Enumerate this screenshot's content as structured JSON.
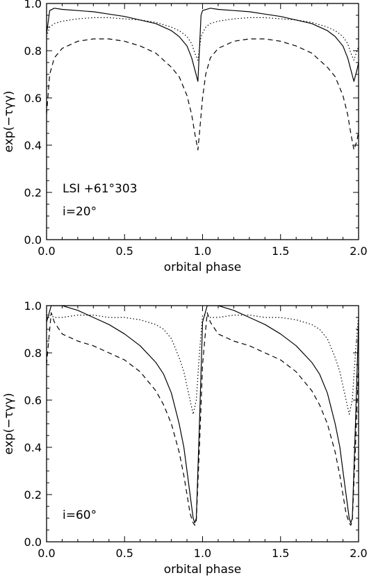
{
  "chart_data": [
    {
      "type": "line",
      "xlabel": "orbital phase",
      "ylabel": "exp(−τγγ)",
      "xlim": [
        0.0,
        2.0
      ],
      "ylim": [
        0.0,
        1.0
      ],
      "xticks": [
        "0.0",
        "0.5",
        "1.0",
        "1.5",
        "2.0"
      ],
      "yticks": [
        "0.0",
        "0.2",
        "0.4",
        "0.6",
        "0.8",
        "1.0"
      ],
      "annotations": [
        "LSI +61°303",
        "i=20°"
      ],
      "grid": false,
      "series": [
        {
          "style": "solid",
          "points": [
            [
              0.0,
              0.87
            ],
            [
              0.02,
              0.97
            ],
            [
              0.05,
              0.98
            ],
            [
              0.1,
              0.975
            ],
            [
              0.2,
              0.97
            ],
            [
              0.3,
              0.965
            ],
            [
              0.4,
              0.955
            ],
            [
              0.5,
              0.945
            ],
            [
              0.6,
              0.93
            ],
            [
              0.7,
              0.915
            ],
            [
              0.8,
              0.885
            ],
            [
              0.85,
              0.86
            ],
            [
              0.9,
              0.82
            ],
            [
              0.93,
              0.77
            ],
            [
              0.95,
              0.72
            ],
            [
              0.97,
              0.67
            ],
            [
              0.99,
              0.95
            ],
            [
              1.0,
              0.97
            ],
            [
              1.05,
              0.98
            ],
            [
              1.1,
              0.975
            ],
            [
              1.2,
              0.97
            ],
            [
              1.3,
              0.965
            ],
            [
              1.4,
              0.955
            ],
            [
              1.5,
              0.945
            ],
            [
              1.6,
              0.93
            ],
            [
              1.7,
              0.915
            ],
            [
              1.8,
              0.885
            ],
            [
              1.85,
              0.86
            ],
            [
              1.9,
              0.82
            ],
            [
              1.93,
              0.77
            ],
            [
              1.95,
              0.72
            ],
            [
              1.97,
              0.67
            ],
            [
              1.99,
              0.72
            ],
            [
              2.0,
              0.75
            ]
          ]
        },
        {
          "style": "dotted",
          "points": [
            [
              0.0,
              0.86
            ],
            [
              0.02,
              0.9
            ],
            [
              0.05,
              0.915
            ],
            [
              0.1,
              0.925
            ],
            [
              0.2,
              0.935
            ],
            [
              0.3,
              0.94
            ],
            [
              0.4,
              0.94
            ],
            [
              0.5,
              0.935
            ],
            [
              0.6,
              0.93
            ],
            [
              0.7,
              0.92
            ],
            [
              0.8,
              0.9
            ],
            [
              0.85,
              0.885
            ],
            [
              0.9,
              0.86
            ],
            [
              0.93,
              0.83
            ],
            [
              0.95,
              0.79
            ],
            [
              0.97,
              0.76
            ],
            [
              0.99,
              0.86
            ],
            [
              1.02,
              0.9
            ],
            [
              1.05,
              0.915
            ],
            [
              1.1,
              0.925
            ],
            [
              1.2,
              0.935
            ],
            [
              1.3,
              0.94
            ],
            [
              1.4,
              0.94
            ],
            [
              1.5,
              0.935
            ],
            [
              1.6,
              0.93
            ],
            [
              1.7,
              0.92
            ],
            [
              1.8,
              0.9
            ],
            [
              1.85,
              0.885
            ],
            [
              1.9,
              0.86
            ],
            [
              1.93,
              0.83
            ],
            [
              1.95,
              0.79
            ],
            [
              1.97,
              0.76
            ],
            [
              1.99,
              0.8
            ],
            [
              2.0,
              0.82
            ]
          ]
        },
        {
          "style": "dashed",
          "points": [
            [
              0.0,
              0.53
            ],
            [
              0.02,
              0.7
            ],
            [
              0.05,
              0.77
            ],
            [
              0.1,
              0.81
            ],
            [
              0.2,
              0.84
            ],
            [
              0.3,
              0.85
            ],
            [
              0.4,
              0.85
            ],
            [
              0.5,
              0.84
            ],
            [
              0.6,
              0.82
            ],
            [
              0.7,
              0.79
            ],
            [
              0.8,
              0.73
            ],
            [
              0.85,
              0.69
            ],
            [
              0.9,
              0.61
            ],
            [
              0.93,
              0.53
            ],
            [
              0.95,
              0.45
            ],
            [
              0.97,
              0.38
            ],
            [
              0.98,
              0.45
            ],
            [
              1.0,
              0.6
            ],
            [
              1.02,
              0.7
            ],
            [
              1.05,
              0.77
            ],
            [
              1.1,
              0.81
            ],
            [
              1.2,
              0.84
            ],
            [
              1.3,
              0.85
            ],
            [
              1.4,
              0.85
            ],
            [
              1.5,
              0.84
            ],
            [
              1.6,
              0.82
            ],
            [
              1.7,
              0.79
            ],
            [
              1.8,
              0.73
            ],
            [
              1.85,
              0.69
            ],
            [
              1.9,
              0.61
            ],
            [
              1.93,
              0.53
            ],
            [
              1.95,
              0.45
            ],
            [
              1.97,
              0.38
            ],
            [
              1.99,
              0.42
            ],
            [
              2.0,
              0.46
            ]
          ]
        }
      ]
    },
    {
      "type": "line",
      "xlabel": "orbital phase",
      "ylabel": "exp(−τγγ)",
      "xlim": [
        0.0,
        2.0
      ],
      "ylim": [
        0.0,
        1.0
      ],
      "xticks": [
        "0.0",
        "0.5",
        "1.0",
        "1.5",
        "2.0"
      ],
      "yticks": [
        "0.0",
        "0.2",
        "0.4",
        "0.6",
        "0.8",
        "1.0"
      ],
      "annotations": [
        "i=60°"
      ],
      "grid": false,
      "series": [
        {
          "style": "solid",
          "points": [
            [
              0.0,
              0.93
            ],
            [
              0.03,
              1.0
            ],
            [
              0.1,
              1.0
            ],
            [
              0.2,
              0.98
            ],
            [
              0.3,
              0.95
            ],
            [
              0.4,
              0.92
            ],
            [
              0.5,
              0.88
            ],
            [
              0.6,
              0.83
            ],
            [
              0.7,
              0.76
            ],
            [
              0.75,
              0.71
            ],
            [
              0.8,
              0.63
            ],
            [
              0.85,
              0.5
            ],
            [
              0.88,
              0.4
            ],
            [
              0.9,
              0.3
            ],
            [
              0.92,
              0.2
            ],
            [
              0.94,
              0.1
            ],
            [
              0.95,
              0.08
            ],
            [
              0.96,
              0.1
            ],
            [
              0.98,
              0.5
            ],
            [
              1.0,
              0.93
            ],
            [
              1.03,
              1.0
            ],
            [
              1.1,
              1.0
            ],
            [
              1.2,
              0.98
            ],
            [
              1.3,
              0.95
            ],
            [
              1.4,
              0.92
            ],
            [
              1.5,
              0.88
            ],
            [
              1.6,
              0.83
            ],
            [
              1.7,
              0.76
            ],
            [
              1.75,
              0.71
            ],
            [
              1.8,
              0.63
            ],
            [
              1.85,
              0.5
            ],
            [
              1.88,
              0.4
            ],
            [
              1.9,
              0.3
            ],
            [
              1.92,
              0.2
            ],
            [
              1.94,
              0.1
            ],
            [
              1.95,
              0.08
            ],
            [
              1.96,
              0.1
            ],
            [
              1.98,
              0.5
            ],
            [
              2.0,
              0.93
            ]
          ]
        },
        {
          "style": "dotted",
          "points": [
            [
              0.0,
              0.96
            ],
            [
              0.02,
              0.96
            ],
            [
              0.05,
              0.95
            ],
            [
              0.1,
              0.95
            ],
            [
              0.2,
              0.96
            ],
            [
              0.3,
              0.96
            ],
            [
              0.4,
              0.95
            ],
            [
              0.5,
              0.95
            ],
            [
              0.6,
              0.94
            ],
            [
              0.7,
              0.92
            ],
            [
              0.75,
              0.9
            ],
            [
              0.8,
              0.86
            ],
            [
              0.85,
              0.78
            ],
            [
              0.88,
              0.72
            ],
            [
              0.9,
              0.66
            ],
            [
              0.92,
              0.6
            ],
            [
              0.94,
              0.54
            ],
            [
              0.96,
              0.6
            ],
            [
              0.98,
              0.8
            ],
            [
              1.0,
              0.96
            ],
            [
              1.02,
              0.96
            ],
            [
              1.05,
              0.95
            ],
            [
              1.1,
              0.95
            ],
            [
              1.2,
              0.96
            ],
            [
              1.3,
              0.96
            ],
            [
              1.4,
              0.95
            ],
            [
              1.5,
              0.95
            ],
            [
              1.6,
              0.94
            ],
            [
              1.7,
              0.92
            ],
            [
              1.75,
              0.9
            ],
            [
              1.8,
              0.86
            ],
            [
              1.85,
              0.78
            ],
            [
              1.88,
              0.72
            ],
            [
              1.9,
              0.66
            ],
            [
              1.92,
              0.6
            ],
            [
              1.94,
              0.54
            ],
            [
              1.96,
              0.6
            ],
            [
              1.98,
              0.8
            ],
            [
              2.0,
              0.96
            ]
          ]
        },
        {
          "style": "dashed",
          "points": [
            [
              0.0,
              0.75
            ],
            [
              0.02,
              0.9
            ],
            [
              0.03,
              0.97
            ],
            [
              0.05,
              0.93
            ],
            [
              0.1,
              0.88
            ],
            [
              0.2,
              0.85
            ],
            [
              0.3,
              0.83
            ],
            [
              0.4,
              0.8
            ],
            [
              0.5,
              0.77
            ],
            [
              0.6,
              0.72
            ],
            [
              0.7,
              0.64
            ],
            [
              0.75,
              0.58
            ],
            [
              0.8,
              0.5
            ],
            [
              0.85,
              0.38
            ],
            [
              0.88,
              0.28
            ],
            [
              0.9,
              0.2
            ],
            [
              0.92,
              0.12
            ],
            [
              0.94,
              0.08
            ],
            [
              0.95,
              0.07
            ],
            [
              0.96,
              0.09
            ],
            [
              0.98,
              0.4
            ],
            [
              1.0,
              0.75
            ],
            [
              1.02,
              0.9
            ],
            [
              1.03,
              0.97
            ],
            [
              1.05,
              0.93
            ],
            [
              1.1,
              0.88
            ],
            [
              1.2,
              0.85
            ],
            [
              1.3,
              0.83
            ],
            [
              1.4,
              0.8
            ],
            [
              1.5,
              0.77
            ],
            [
              1.6,
              0.72
            ],
            [
              1.7,
              0.64
            ],
            [
              1.75,
              0.58
            ],
            [
              1.8,
              0.5
            ],
            [
              1.85,
              0.38
            ],
            [
              1.88,
              0.28
            ],
            [
              1.9,
              0.2
            ],
            [
              1.92,
              0.12
            ],
            [
              1.94,
              0.08
            ],
            [
              1.95,
              0.07
            ],
            [
              1.96,
              0.09
            ],
            [
              1.98,
              0.4
            ],
            [
              2.0,
              0.75
            ]
          ]
        }
      ]
    }
  ]
}
